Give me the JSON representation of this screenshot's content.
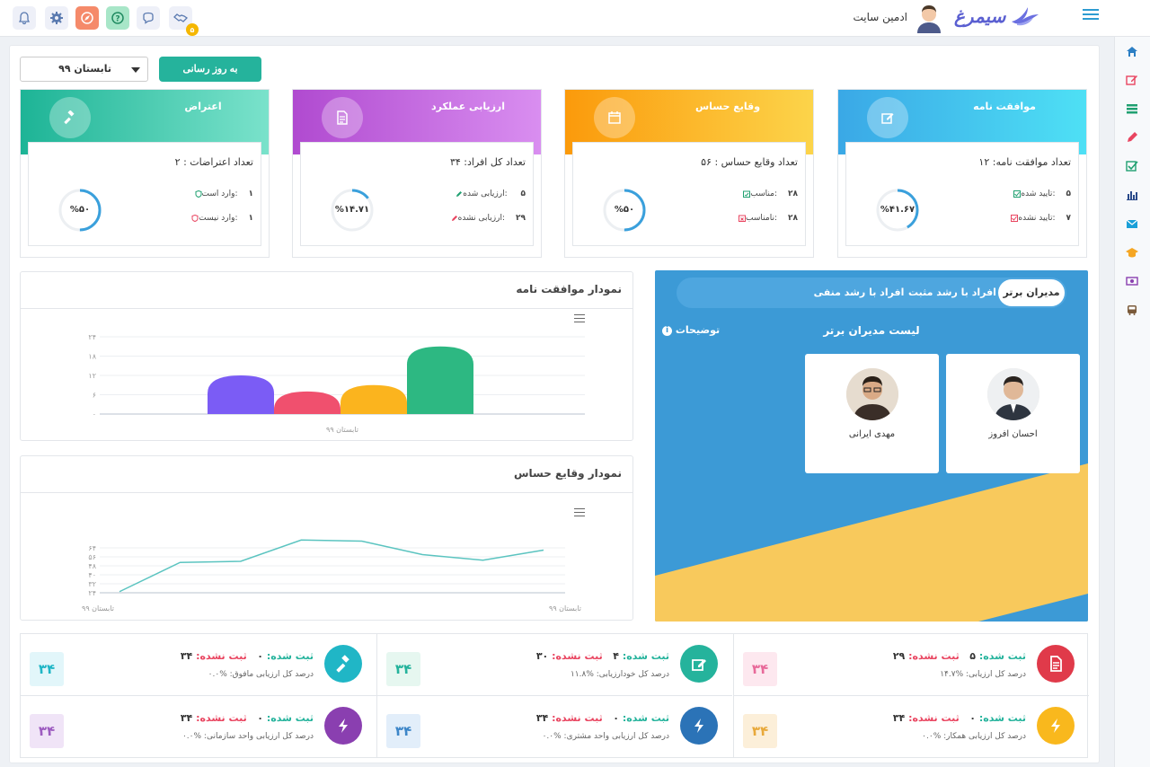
{
  "header": {
    "admin_name": "ادمین سایت",
    "logo_text": "سیمرغ",
    "notification_count": "۵"
  },
  "toolbar": {
    "period_select": "تابستان ۹۹",
    "update_label": "به روز رسانی"
  },
  "cards": [
    {
      "title": "موافقت نامه",
      "total": "تعداد موافقت نامه: ۱۲",
      "row1_label": "تایید شده:",
      "row1_value": "۵",
      "row2_label": "تایید نشده:",
      "row2_value": "۷",
      "percent_label": "%۴۱.۶۷",
      "percent": 41.67,
      "color_from": "#3aa8e6",
      "color_to": "#4ee0f5",
      "ring_color": "#3aa0dc"
    },
    {
      "title": "وقایع حساس",
      "total": "تعداد وقایع حساس : ۵۶",
      "row1_label": "مناسب:",
      "row1_value": "۲۸",
      "row2_label": "نامناسب:",
      "row2_value": "۲۸",
      "percent_label": "%۵۰",
      "percent": 50,
      "color_from": "#fb9a0b",
      "color_to": "#fcd44a",
      "ring_color": "#3aa0dc"
    },
    {
      "title": "ارزیابی عملکرد",
      "total": "تعداد کل افراد: ۳۴",
      "row1_label": "ارزیابی شده: ",
      "row1_value": "۵",
      "row2_label": "ارزیابی نشده:",
      "row2_value": "۲۹",
      "percent_label": "%۱۴.۷۱",
      "percent": 14.71,
      "color_from": "#b04ad0",
      "color_to": "#d98ef0",
      "ring_color": "#3aa0dc"
    },
    {
      "title": "اعتراض",
      "total": "تعداد اعتراضات : ۲",
      "row1_label": "وارد است:",
      "row1_value": "۱",
      "row2_label": "وارد نیست:",
      "row2_value": "۱",
      "percent_label": "%۵۰",
      "percent": 50,
      "color_from": "#1db496",
      "color_to": "#7ae2cb",
      "ring_color": "#3aa0dc"
    }
  ],
  "panels": {
    "agreement_chart_title": "نمودار موافقت نامه",
    "events_chart_title": "نمودار وقایع حساس"
  },
  "chart_data": [
    {
      "type": "bar",
      "title": "نمودار موافقت نامه",
      "categories": [
        "تابستان ۹۹"
      ],
      "series": [
        {
          "values": [
            12
          ],
          "color": "#7b5cf5"
        },
        {
          "values": [
            7
          ],
          "color": "#f0506e"
        },
        {
          "values": [
            9
          ],
          "color": "#fbb41e"
        },
        {
          "values": [
            21
          ],
          "color": "#2db882"
        }
      ],
      "y_ticks": [
        "۰",
        "۶",
        "۱۲",
        "۱۸",
        "۲۴"
      ],
      "ylim": [
        0,
        24
      ],
      "xlabel_tick": "تابستان ۹۹"
    },
    {
      "type": "line",
      "title": "نمودار وقایع حساس",
      "x": [
        0,
        1,
        2,
        3,
        4,
        5,
        6,
        7
      ],
      "values": [
        25,
        51,
        52,
        71,
        70,
        58,
        53,
        62
      ],
      "color": "#5bc4c0",
      "y_ticks": [
        "۲۴",
        "۳۲",
        "۴۰",
        "۴۸",
        "۵۶",
        "۶۴"
      ],
      "ylim": [
        24,
        72
      ],
      "x_tick_left": "تابستان ۹۹",
      "x_tick_right": "تابستان ۹۹"
    }
  ],
  "managers_panel": {
    "tabs": [
      "مدیران برتر",
      "افراد با رشد مثبت",
      "افراد با رشد منفی"
    ],
    "list_title": "لیست مدیران برتر",
    "desc_link": "توضیحات",
    "managers": [
      {
        "name": "احسان افروز"
      },
      {
        "name": "مهدی ایرانی"
      }
    ]
  },
  "stats": [
    {
      "done_label": "ثبت شده:",
      "done": "۵",
      "undone_label": "ثبت نشده:",
      "undone": "۲۹",
      "subtitle": "درصد کل ارزیابی: %۱۴.۷",
      "box": "۳۴",
      "circle_color": "#e03a4a",
      "box_bg": "#fde8ef",
      "box_color": "#e86a9a",
      "icon": "document-icon"
    },
    {
      "done_label": "ثبت شده:",
      "done": "۴",
      "undone_label": "ثبت نشده:",
      "undone": "۳۰",
      "subtitle": "درصد کل خودارزیابی: %۱۱.۸",
      "box": "۳۴",
      "circle_color": "#25b39c",
      "box_bg": "#e6f7f0",
      "box_color": "#25b39c",
      "icon": "edit-icon"
    },
    {
      "done_label": "ثبت شده:",
      "done": "۰",
      "undone_label": "ثبت نشده:",
      "undone": "۳۴",
      "subtitle": "درصد کل ارزیابی مافوق: %۰.۰",
      "box": "۳۴",
      "circle_color": "#20b6c6",
      "box_bg": "#e2f6fa",
      "box_color": "#20b6c6",
      "icon": "gavel-icon"
    },
    {
      "done_label": "ثبت شده:",
      "done": "۰",
      "undone_label": "ثبت نشده:",
      "undone": "۳۴",
      "subtitle": "درصد کل ارزیابی همکار: %۰.۰",
      "box": "۳۴",
      "circle_color": "#f9b81d",
      "box_bg": "#fcefd9",
      "box_color": "#e8a93b",
      "icon": "bolt-icon"
    },
    {
      "done_label": "ثبت شده:",
      "done": "۰",
      "undone_label": "ثبت نشده:",
      "undone": "۳۴",
      "subtitle": "درصد کل ارزیابی واحد مشتری: %۰.۰",
      "box": "۳۴",
      "circle_color": "#2b73b7",
      "box_bg": "#e2eefa",
      "box_color": "#3d86c8",
      "icon": "bolt-icon"
    },
    {
      "done_label": "ثبت شده:",
      "done": "۰",
      "undone_label": "ثبت نشده:",
      "undone": "۳۴",
      "subtitle": "درصد کل ارزیابی واحد سازمانی: %۰.۰",
      "box": "۳۴",
      "circle_color": "#8a3fb0",
      "box_bg": "#f0e4f7",
      "box_color": "#9d5cc0",
      "icon": "bolt-icon"
    }
  ],
  "colors": {
    "accent": "#25b39c",
    "blue_panel": "#3c9ad6",
    "yellow_shape": "#f8c95c"
  }
}
